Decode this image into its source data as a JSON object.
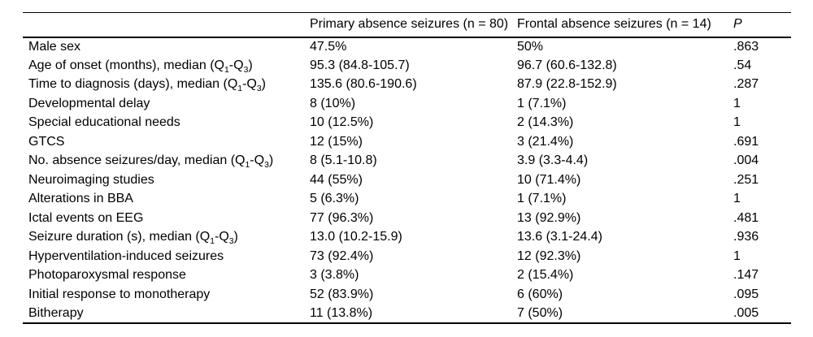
{
  "table": {
    "background": "#ffffff",
    "text_color": "#000000",
    "rule_color": "#000000",
    "columns": [
      "",
      "Primary absence seizures (n = 80)",
      "Frontal absence seizures (n = 14)",
      "P"
    ],
    "rows": [
      {
        "label": "Male sex",
        "primary": "47.5%",
        "frontal": "50%",
        "p": ".863"
      },
      {
        "label": "Age of onset (months), median (Q~1~-Q~3~)",
        "primary": "95.3 (84.8-105.7)",
        "frontal": "96.7 (60.6-132.8)",
        "p": ".54"
      },
      {
        "label": "Time to diagnosis (days), median (Q~1~-Q~3~)",
        "primary": "135.6 (80.6-190.6)",
        "frontal": "87.9 (22.8-152.9)",
        "p": ".287"
      },
      {
        "label": "Developmental delay",
        "primary": "8 (10%)",
        "frontal": "1 (7.1%)",
        "p": "1"
      },
      {
        "label": "Special educational needs",
        "primary": "10 (12.5%)",
        "frontal": "2 (14.3%)",
        "p": "1"
      },
      {
        "label": "GTCS",
        "primary": "12 (15%)",
        "frontal": "3 (21.4%)",
        "p": ".691"
      },
      {
        "label": "No. absence seizures/day, median (Q~1~-Q~3~)",
        "primary": "8 (5.1-10.8)",
        "frontal": "3.9 (3.3-4.4)",
        "p": ".004"
      },
      {
        "label": "Neuroimaging studies",
        "primary": "44 (55%)",
        "frontal": "10 (71.4%)",
        "p": ".251"
      },
      {
        "label": "Alterations in BBA",
        "primary": "5 (6.3%)",
        "frontal": "1 (7.1%)",
        "p": "1"
      },
      {
        "label": "Ictal events on EEG",
        "primary": "77 (96.3%)",
        "frontal": "13 (92.9%)",
        "p": ".481"
      },
      {
        "label": "Seizure duration (s), median (Q~1~-Q~3~)",
        "primary": "13.0 (10.2-15.9)",
        "frontal": "13.6 (3.1-24.4)",
        "p": ".936"
      },
      {
        "label": "Hyperventilation-induced seizures",
        "primary": "73 (92.4%)",
        "frontal": "12 (92.3%)",
        "p": "1"
      },
      {
        "label": "Photoparoxysmal response",
        "primary": "3 (3.8%)",
        "frontal": "2 (15.4%)",
        "p": ".147"
      },
      {
        "label": "Initial response to monotherapy",
        "primary": "52 (83.9%)",
        "frontal": "6 (60%)",
        "p": ".095"
      },
      {
        "label": "Bitherapy",
        "primary": "11 (13.8%)",
        "frontal": "7 (50%)",
        "p": ".005"
      }
    ]
  }
}
